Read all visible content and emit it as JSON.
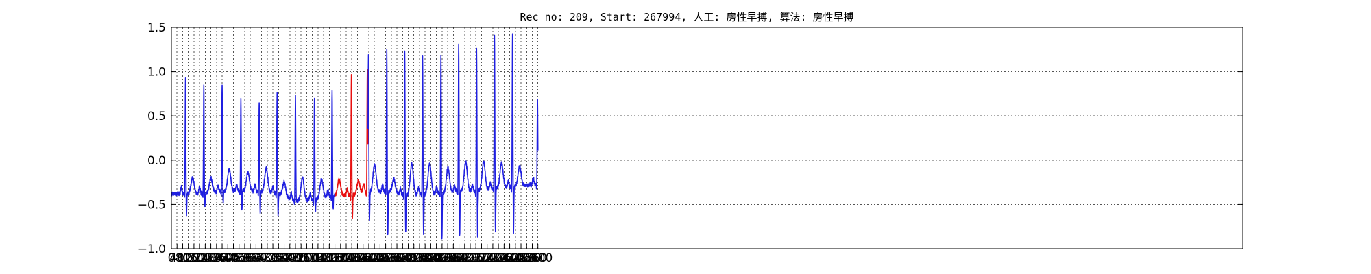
{
  "chart_data": {
    "type": "line",
    "title": "Rec_no: 209, Start: 267994, 人工: 房性早搏, 算法: 房性早搏",
    "xlabel": "",
    "ylabel": "",
    "xlim": [
      0,
      7600
    ],
    "ylim": [
      -1.0,
      1.5
    ],
    "grid": true,
    "x_tick_labels": [
      "0",
      "40",
      "80",
      "120",
      "160",
      "200",
      "240",
      "280",
      "320",
      "360",
      "400",
      "440",
      "480",
      "520",
      "560",
      "600",
      "640",
      "680",
      "720",
      "760",
      "800",
      "840",
      "880",
      "920",
      "960",
      "1000",
      "1040",
      "1080",
      "1120",
      "1160",
      "1200",
      "1240",
      "1280",
      "1320",
      "1360",
      "1400",
      "1440",
      "1480",
      "1520",
      "1560",
      "1600",
      "1640",
      "1680",
      "1720",
      "1760",
      "1800",
      "1840",
      "1880",
      "1920",
      "1960",
      "2000",
      "2040",
      "2080",
      "2120",
      "2160",
      "2200",
      "2240",
      "2280",
      "2320",
      "2360",
      "2400",
      "2440",
      "2480",
      "2520",
      "2560",
      "2600"
    ],
    "y_ticks": [
      -1.0,
      -0.5,
      0.0,
      0.5,
      1.0,
      1.5
    ],
    "y_tick_labels": [
      "−1.0",
      "−0.5",
      "0.0",
      "0.5",
      "1.0",
      "1.5"
    ],
    "sample_count": 2600,
    "colors": {
      "normal": "#1f1fe0",
      "highlight": "#e81010"
    },
    "series": [
      {
        "color": "normal",
        "x": [
          0,
          1100
        ],
        "beats": [
          {
            "r": 100,
            "peak": 0.93,
            "s": -0.66,
            "t": -0.2,
            "base": -0.38
          },
          {
            "r": 230,
            "peak": 0.84,
            "s": -0.57,
            "t": -0.22,
            "base": -0.38
          },
          {
            "r": 360,
            "peak": 0.85,
            "s": -0.5,
            "t": -0.1,
            "base": -0.35
          },
          {
            "r": 493,
            "peak": 0.68,
            "s": -0.6,
            "t": -0.14,
            "base": -0.35
          },
          {
            "r": 623,
            "peak": 0.66,
            "s": -0.63,
            "t": -0.08,
            "base": -0.35
          },
          {
            "r": 750,
            "peak": 0.76,
            "s": -0.64,
            "t": -0.22,
            "base": -0.38
          },
          {
            "r": 880,
            "peak": 0.72,
            "s": -0.47,
            "t": -0.2,
            "base": -0.46
          },
          {
            "r": 1015,
            "peak": 0.71,
            "s": -0.6,
            "t": -0.24,
            "base": -0.45
          }
        ]
      },
      {
        "color": "normal",
        "x": [
          1100,
          1160
        ],
        "beats": [
          {
            "r": 1140,
            "peak": 0.79,
            "s": -0.57,
            "t": -0.22,
            "base": -0.4
          }
        ]
      },
      {
        "color": "highlight",
        "x": [
          1160,
          1395
        ],
        "beats": [
          {
            "r": 1277,
            "peak": 0.96,
            "s": -0.7,
            "t": -0.25,
            "base": -0.4
          },
          {
            "r": 1390,
            "peak": 1.05,
            "s": -0.35,
            "t": -0.1,
            "base": -0.37
          }
        ]
      },
      {
        "color": "normal",
        "x": [
          1395,
          2600
        ],
        "beats": [
          {
            "r": 1398,
            "peak": 1.17,
            "s": -0.75,
            "t": -0.32,
            "base": -0.37
          },
          {
            "r": 1528,
            "peak": 1.24,
            "s": -0.92,
            "t": -0.2,
            "base": -0.35
          },
          {
            "r": 1655,
            "peak": 1.25,
            "s": -0.87,
            "t": -0.05,
            "base": -0.4
          },
          {
            "r": 1782,
            "peak": 1.16,
            "s": -0.9,
            "t": -0.04,
            "base": -0.38
          },
          {
            "r": 1912,
            "peak": 1.17,
            "s": -0.97,
            "t": -0.1,
            "base": -0.38
          },
          {
            "r": 2038,
            "peak": 1.31,
            "s": -0.94,
            "t": -0.02,
            "base": -0.35
          },
          {
            "r": 2165,
            "peak": 1.27,
            "s": -0.92,
            "t": -0.03,
            "base": -0.35
          },
          {
            "r": 2292,
            "peak": 1.41,
            "s": -0.88,
            "t": -0.04,
            "base": -0.32
          },
          {
            "r": 2420,
            "peak": 1.44,
            "s": -0.88,
            "t": -0.08,
            "base": -0.3
          },
          {
            "r": 2597,
            "peak": 0.7,
            "s": -0.3,
            "t": -0.1,
            "base": -0.27
          }
        ]
      }
    ]
  }
}
